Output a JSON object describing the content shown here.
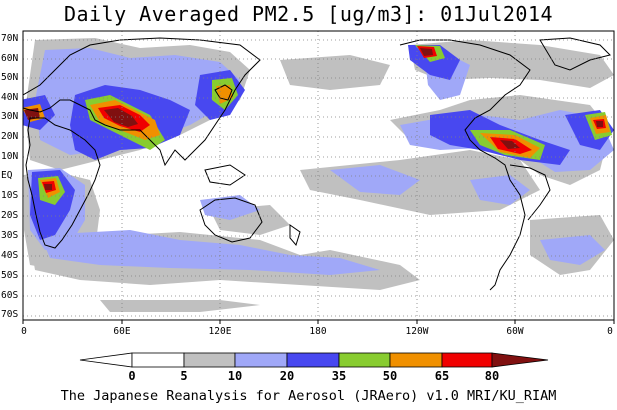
{
  "title": "Daily Averaged PM2.5 [ug/m3]: 01Jul2014",
  "footer": "The Japanese Reanalysis for Aerosol (JRAero) v1.0 MRI/KU_RIAM",
  "lat_labels": [
    "70N",
    "60N",
    "50N",
    "40N",
    "30N",
    "20N",
    "10N",
    "EQ",
    "10S",
    "20S",
    "30S",
    "40S",
    "50S",
    "60S",
    "70S"
  ],
  "lon_labels": [
    "0",
    "60E",
    "120E",
    "180",
    "120W",
    "60W",
    "0"
  ],
  "colorbar": {
    "labels": [
      "0",
      "5",
      "10",
      "20",
      "35",
      "50",
      "65",
      "80"
    ],
    "colors": [
      "#ffffff",
      "#c0c0c0",
      "#a0a8f8",
      "#4848f0",
      "#88cc30",
      "#f09000",
      "#f00000",
      "#801010"
    ]
  },
  "palette": {
    "gray": "#c0c0c0",
    "lightblue": "#a0a8f8",
    "blue": "#4848f0",
    "green": "#88cc30",
    "orange": "#f09000",
    "red": "#f00000",
    "maroon": "#801010"
  }
}
